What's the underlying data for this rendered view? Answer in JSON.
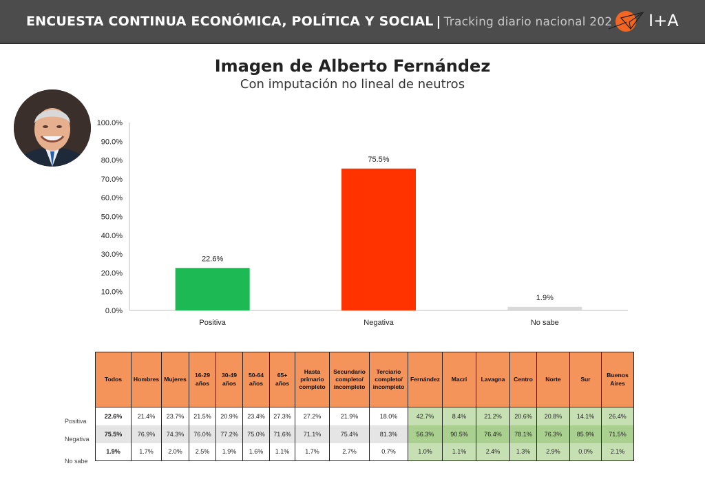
{
  "header": {
    "title": "ENCUESTA CONTINUA ECONÓMICA, POLÍTICA Y SOCIAL",
    "separator": "|",
    "subtitle": "Tracking diario nacional 202",
    "brand": "I+A"
  },
  "colors": {
    "header_bg": "#4c4c4c",
    "accent_orange": "#f26522",
    "table_header": "#f4935a",
    "positive": "#1db954",
    "negative": "#ff3300",
    "unknown": "#d9d9d9",
    "green_cell": "#c6e0b4",
    "green_cell_dark": "#a9d08e"
  },
  "icons": [
    "paper-plane-logo-icon",
    "portrait-photo"
  ],
  "chart_data": {
    "type": "bar",
    "title": "Imagen de Alberto Fernández",
    "subtitle": "Con imputación no lineal de neutros",
    "categories": [
      "Positiva",
      "Negativa",
      "No sabe"
    ],
    "values": [
      22.6,
      75.5,
      1.9
    ],
    "value_labels": [
      "22.6%",
      "75.5%",
      "1.9%"
    ],
    "bar_colors": [
      "#1db954",
      "#ff3300",
      "#d9d9d9"
    ],
    "ylim": [
      0,
      100
    ],
    "yticks": [
      "0.0%",
      "10.0%",
      "20.0%",
      "30.0%",
      "40.0%",
      "50.0%",
      "60.0%",
      "70.0%",
      "80.0%",
      "90.0%",
      "100.0%"
    ],
    "grid": false
  },
  "table": {
    "columns": [
      "Todos",
      "Hombres",
      "Mujeres",
      "16-29 años",
      "30-49 años",
      "50-64 años",
      "65+ años",
      "Hasta primario completo",
      "Secundario completo/ incompleto",
      "Terciario completo/ incompleto",
      "Fernández",
      "Macri",
      "Lavagna",
      "Centro",
      "Norte",
      "Sur",
      "Buenos Aires"
    ],
    "rows": [
      {
        "label": "Positiva",
        "values": [
          "22.6%",
          "21.4%",
          "23.7%",
          "21.5%",
          "20.9%",
          "23.4%",
          "27.3%",
          "27.2%",
          "21.9%",
          "18.0%",
          "42.7%",
          "8.4%",
          "21.2%",
          "20.6%",
          "20.8%",
          "14.1%",
          "26.4%"
        ]
      },
      {
        "label": "Negativa",
        "values": [
          "75.5%",
          "76.9%",
          "74.3%",
          "76.0%",
          "77.2%",
          "75.0%",
          "71.6%",
          "71.1%",
          "75.4%",
          "81.3%",
          "56.3%",
          "90.5%",
          "76.4%",
          "78.1%",
          "76.3%",
          "85.9%",
          "71.5%"
        ]
      },
      {
        "label": "No sabe",
        "values": [
          "1.9%",
          "1.7%",
          "2.0%",
          "2.5%",
          "1.9%",
          "1.6%",
          "1.1%",
          "1.7%",
          "2.7%",
          "0.7%",
          "1.0%",
          "1.1%",
          "2.4%",
          "1.3%",
          "2.9%",
          "0.0%",
          "2.1%"
        ]
      }
    ]
  }
}
